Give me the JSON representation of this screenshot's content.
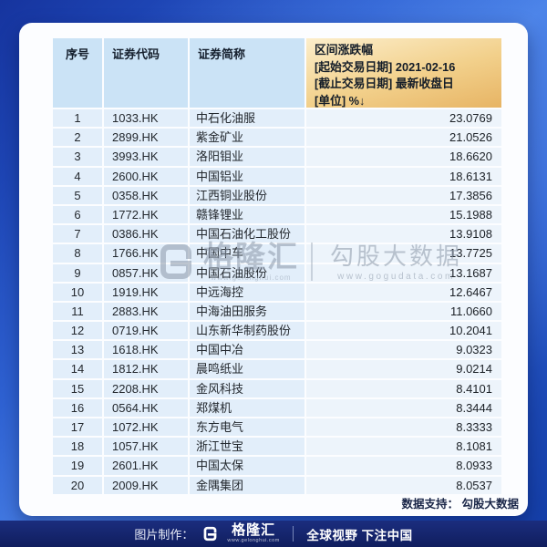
{
  "chart_data": {
    "type": "table",
    "title": "区间涨跌幅 [起始交易日期] 2021-02-16 [截止交易日期] 最新收盘日 [单位] %↓",
    "columns": [
      "序号",
      "证券代码",
      "证券简称",
      "区间涨跌幅(%)"
    ],
    "rows": [
      [
        1,
        "1033.HK",
        "中石化油服",
        23.0769
      ],
      [
        2,
        "2899.HK",
        "紫金矿业",
        21.0526
      ],
      [
        3,
        "3993.HK",
        "洛阳钼业",
        18.662
      ],
      [
        4,
        "2600.HK",
        "中国铝业",
        18.6131
      ],
      [
        5,
        "0358.HK",
        "江西铜业股份",
        17.3856
      ],
      [
        6,
        "1772.HK",
        "赣锋锂业",
        15.1988
      ],
      [
        7,
        "0386.HK",
        "中国石油化工股份",
        13.9108
      ],
      [
        8,
        "1766.HK",
        "中国中车",
        13.7725
      ],
      [
        9,
        "0857.HK",
        "中国石油股份",
        13.1687
      ],
      [
        10,
        "1919.HK",
        "中远海控",
        12.6467
      ],
      [
        11,
        "2883.HK",
        "中海油田服务",
        11.066
      ],
      [
        12,
        "0719.HK",
        "山东新华制药股份",
        10.2041
      ],
      [
        13,
        "1618.HK",
        "中国中冶",
        9.0323
      ],
      [
        14,
        "1812.HK",
        "晨鸣纸业",
        9.0214
      ],
      [
        15,
        "2208.HK",
        "金风科技",
        8.4101
      ],
      [
        16,
        "0564.HK",
        "郑煤机",
        8.3444
      ],
      [
        17,
        "1072.HK",
        "东方电气",
        8.3333
      ],
      [
        18,
        "1057.HK",
        "浙江世宝",
        8.1081
      ],
      [
        19,
        "2601.HK",
        "中国太保",
        8.0933
      ],
      [
        20,
        "2009.HK",
        "金隅集团",
        8.0537
      ]
    ]
  },
  "table": {
    "headers": {
      "index": "序号",
      "code": "证券代码",
      "name": "证券简称"
    },
    "value_header": {
      "line1": "区间涨跌幅",
      "line2": "[起始交易日期] 2021-02-16",
      "line3": "[截止交易日期] 最新收盘日",
      "line4": "[单位] %↓"
    }
  },
  "watermark": {
    "brand_left": "格隆汇",
    "brand_left_url": "www.gelonghui.com",
    "brand_right": "勾股大数据",
    "brand_right_url": "www.gogudata.com"
  },
  "footnote": "数据支持： 勾股大数据",
  "footer": {
    "made_by": "图片制作：",
    "brand": "格隆汇",
    "brand_url": "www.gelonghui.com",
    "slogan": "全球视野 下注中国"
  },
  "colors": {
    "header_blue": "#cbe3f6",
    "header_orange_top": "#fceecb",
    "header_orange_bottom": "#e7b464",
    "row_blue": "#e2eefa",
    "value_cell": "#edf4fb",
    "footer_navy": "#13246b",
    "bg_blue_dark": "#16349e",
    "bg_blue_light": "#4b83e8"
  }
}
